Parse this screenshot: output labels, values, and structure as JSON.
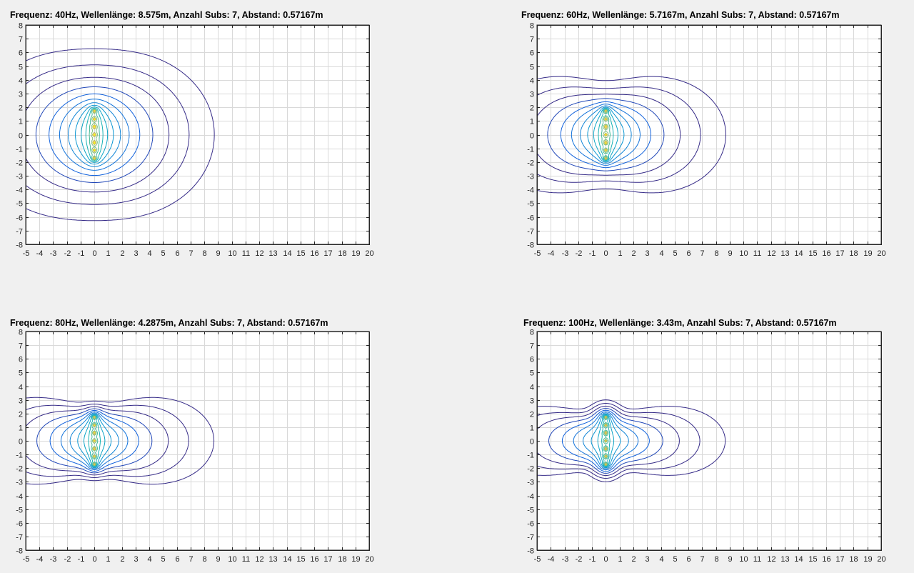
{
  "figure": {
    "background": "#f0f0f0"
  },
  "chart_data": [
    {
      "type": "contour",
      "title": "Frequenz: 40Hz,  Wellenlänge: 8.575m,  Anzahl Subs: 7,  Abstand: 0.57167m",
      "xlabel": "",
      "ylabel": "",
      "xlim": [
        -5,
        20
      ],
      "ylim": [
        -8,
        8
      ],
      "xticks": [
        "-5",
        "-4",
        "-3",
        "-2",
        "-1",
        "0",
        "1",
        "2",
        "3",
        "4",
        "5",
        "6",
        "7",
        "8",
        "9",
        "10",
        "11",
        "12",
        "13",
        "14",
        "15",
        "16",
        "17",
        "18",
        "19",
        "20"
      ],
      "yticks": [
        "8",
        "7",
        "6",
        "5",
        "4",
        "3",
        "2",
        "1",
        "0",
        "-1",
        "-2",
        "-3",
        "-4",
        "-5",
        "-6",
        "-7",
        "-8"
      ],
      "grid": true,
      "frequency_hz": 40,
      "wavelength_m": 8.575,
      "sub_count": 7,
      "spacing_m": 0.57167,
      "colormap": "parula"
    },
    {
      "type": "contour",
      "title": "Frequenz: 60Hz,  Wellenlänge: 5.7167m,  Anzahl Subs: 7,  Abstand: 0.57167m",
      "xlabel": "",
      "ylabel": "",
      "xlim": [
        -5,
        20
      ],
      "ylim": [
        -8,
        8
      ],
      "xticks": [
        "-5",
        "-4",
        "-3",
        "-2",
        "-1",
        "0",
        "1",
        "2",
        "3",
        "4",
        "5",
        "6",
        "7",
        "8",
        "9",
        "10",
        "11",
        "12",
        "13",
        "14",
        "15",
        "16",
        "17",
        "18",
        "19",
        "20"
      ],
      "yticks": [
        "8",
        "7",
        "6",
        "5",
        "4",
        "3",
        "2",
        "1",
        "0",
        "-1",
        "-2",
        "-3",
        "-4",
        "-5",
        "-6",
        "-7",
        "-8"
      ],
      "grid": true,
      "frequency_hz": 60,
      "wavelength_m": 5.7167,
      "sub_count": 7,
      "spacing_m": 0.57167,
      "colormap": "parula"
    },
    {
      "type": "contour",
      "title": "Frequenz: 80Hz,  Wellenlänge: 4.2875m,  Anzahl Subs: 7,  Abstand: 0.57167m",
      "xlabel": "",
      "ylabel": "",
      "xlim": [
        -5,
        20
      ],
      "ylim": [
        -8,
        8
      ],
      "xticks": [
        "-5",
        "-4",
        "-3",
        "-2",
        "-1",
        "0",
        "1",
        "2",
        "3",
        "4",
        "5",
        "6",
        "7",
        "8",
        "9",
        "10",
        "11",
        "12",
        "13",
        "14",
        "15",
        "16",
        "17",
        "18",
        "19",
        "20"
      ],
      "yticks": [
        "8",
        "7",
        "6",
        "5",
        "4",
        "3",
        "2",
        "1",
        "0",
        "-1",
        "-2",
        "-3",
        "-4",
        "-5",
        "-6",
        "-7",
        "-8"
      ],
      "grid": true,
      "frequency_hz": 80,
      "wavelength_m": 4.2875,
      "sub_count": 7,
      "spacing_m": 0.57167,
      "colormap": "parula"
    },
    {
      "type": "contour",
      "title": "Frequenz: 100Hz,  Wellenlänge: 3.43m,  Anzahl Subs: 7,  Abstand: 0.57167m",
      "xlabel": "",
      "ylabel": "",
      "xlim": [
        -5,
        20
      ],
      "ylim": [
        -8,
        8
      ],
      "xticks": [
        "-5",
        "-4",
        "-3",
        "-2",
        "-1",
        "0",
        "1",
        "2",
        "3",
        "4",
        "5",
        "6",
        "7",
        "8",
        "9",
        "10",
        "11",
        "12",
        "13",
        "14",
        "15",
        "16",
        "17",
        "18",
        "19",
        "20"
      ],
      "yticks": [
        "8",
        "7",
        "6",
        "5",
        "4",
        "3",
        "2",
        "1",
        "0",
        "-1",
        "-2",
        "-3",
        "-4",
        "-5",
        "-6",
        "-7",
        "-8"
      ],
      "grid": true,
      "frequency_hz": 100,
      "wavelength_m": 3.43,
      "sub_count": 7,
      "spacing_m": 0.57167,
      "colormap": "parula"
    }
  ]
}
